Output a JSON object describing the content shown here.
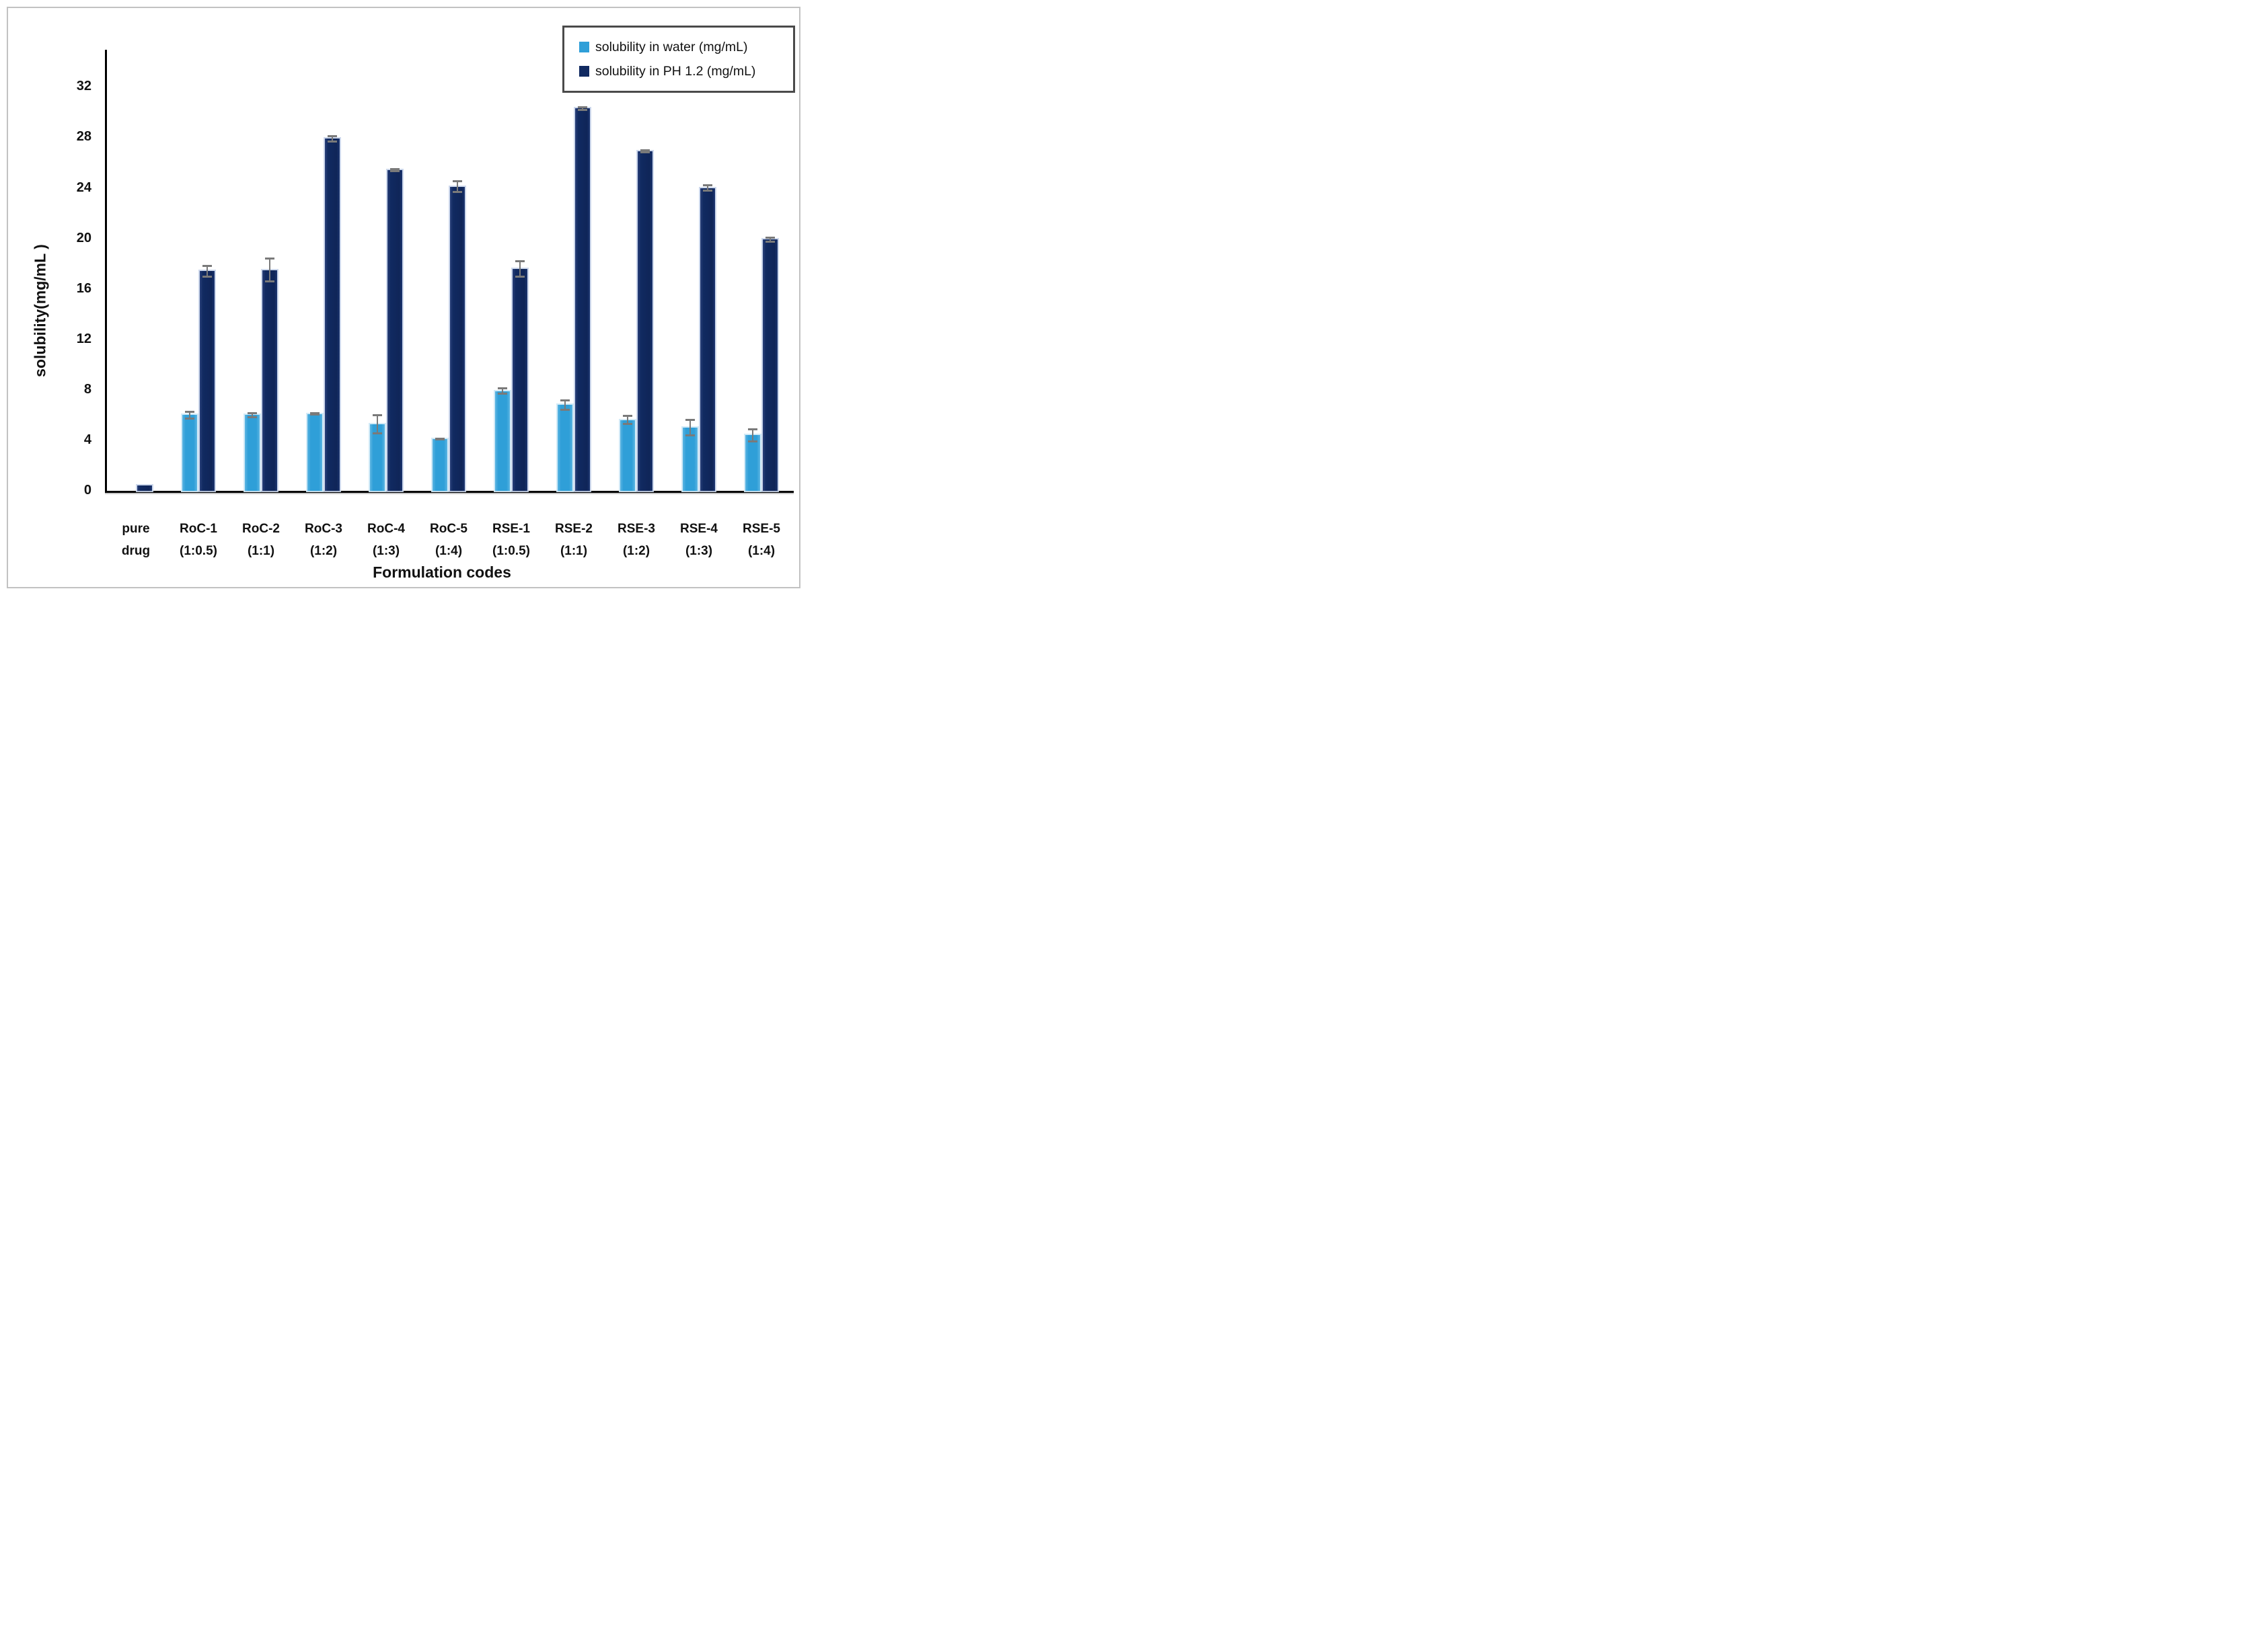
{
  "chart_data": {
    "type": "bar",
    "title": "",
    "xlabel": "Formulation codes",
    "ylabel": "solubility(mg/mL )",
    "ylim": [
      0,
      34
    ],
    "yticks": [
      0,
      4,
      8,
      12,
      16,
      20,
      24,
      28,
      32
    ],
    "grid": false,
    "legend_position": "top-right",
    "error_bar_color": "#7a7a7a",
    "categories": [
      [
        "pure",
        "drug"
      ],
      [
        "RoC-1",
        "(1:0.5)"
      ],
      [
        "RoC-2",
        "(1:1)"
      ],
      [
        "RoC-3",
        "(1:2)"
      ],
      [
        "RoC-4",
        "(1:3)"
      ],
      [
        "RoC-5",
        "(1:4)"
      ],
      [
        "RSE-1",
        "(1:0.5)"
      ],
      [
        "RSE-2",
        "(1:1)"
      ],
      [
        "RSE-3",
        "(1:2)"
      ],
      [
        "RSE-4",
        "(1:3)"
      ],
      [
        "RSE-5",
        "(1:4)"
      ]
    ],
    "series": [
      {
        "name": "solubility in water (mg/mL)",
        "color": "#2f9fd8",
        "values": [
          0,
          6.0,
          6.0,
          6.1,
          5.3,
          4.1,
          7.9,
          6.8,
          5.6,
          5.0,
          4.4
        ],
        "errors": [
          0,
          0.35,
          0.25,
          0.15,
          0.8,
          0.12,
          0.3,
          0.45,
          0.4,
          0.7,
          0.55
        ]
      },
      {
        "name": "solubility in PH 1.2 (mg/mL)",
        "color": "#112a61",
        "values": [
          0.45,
          17.4,
          17.5,
          27.9,
          25.4,
          24.1,
          17.6,
          30.3,
          26.9,
          24.0,
          19.9
        ],
        "errors": [
          0,
          0.5,
          1.0,
          0.3,
          0.15,
          0.5,
          0.7,
          0.2,
          0.15,
          0.3,
          0.25
        ]
      }
    ]
  }
}
